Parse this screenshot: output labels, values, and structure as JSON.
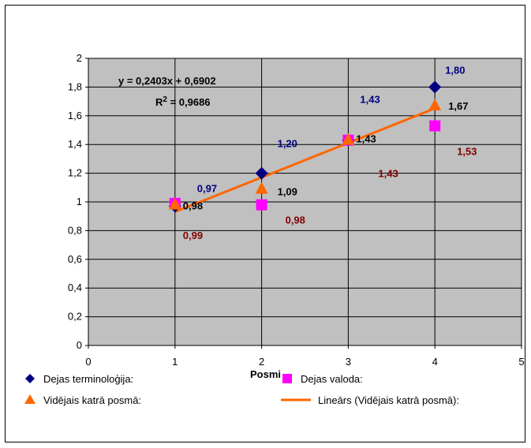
{
  "chart_data": {
    "type": "scatter",
    "xlabel": "Posmi",
    "ylabel": "",
    "xlim": [
      0,
      5
    ],
    "ylim": [
      0,
      2
    ],
    "x_ticks": [
      "0",
      "1",
      "2",
      "3",
      "4",
      "5"
    ],
    "y_ticks": [
      "0",
      "0,2",
      "0,4",
      "0,6",
      "0,8",
      "1",
      "1,2",
      "1,4",
      "1,6",
      "1,8",
      "2"
    ],
    "grid": true,
    "plot_background": "#c0c0c0",
    "series": [
      {
        "name": "Dejas terminoloģija:",
        "marker": "diamond",
        "color": "#000080",
        "label_color": "#000080",
        "x": [
          1,
          2,
          3,
          4
        ],
        "y": [
          0.97,
          1.2,
          1.43,
          1.8
        ],
        "labels": [
          "0,97",
          "1,20",
          "1,43",
          "1,80"
        ]
      },
      {
        "name": "Dejas valoda:",
        "marker": "square",
        "color": "#ff00ff",
        "label_color": "#800000",
        "x": [
          1,
          2,
          3,
          4
        ],
        "y": [
          0.99,
          0.98,
          1.43,
          1.53
        ],
        "labels": [
          "0,99",
          "0,98",
          "1,43",
          "1,53"
        ]
      },
      {
        "name": "Vidējais katrā posmā:",
        "marker": "triangle",
        "color": "#ff6600",
        "label_color": "#000000",
        "x": [
          1,
          2,
          3,
          4
        ],
        "y": [
          0.98,
          1.09,
          1.43,
          1.67
        ],
        "labels": [
          "0,98",
          "1,09",
          "1,43",
          "1,67"
        ]
      }
    ],
    "trendline": {
      "name": "Lineārs (Vidējais katrā posmā):",
      "color": "#ff6600",
      "slope": 0.2403,
      "intercept": 0.6902,
      "x_range": [
        1,
        4
      ],
      "equation": "y = 0,2403x + 0,6902",
      "r2_label": "R",
      "r2_sup": "2",
      "r2_value": " = 0,9686"
    },
    "legend_position": "bottom"
  }
}
